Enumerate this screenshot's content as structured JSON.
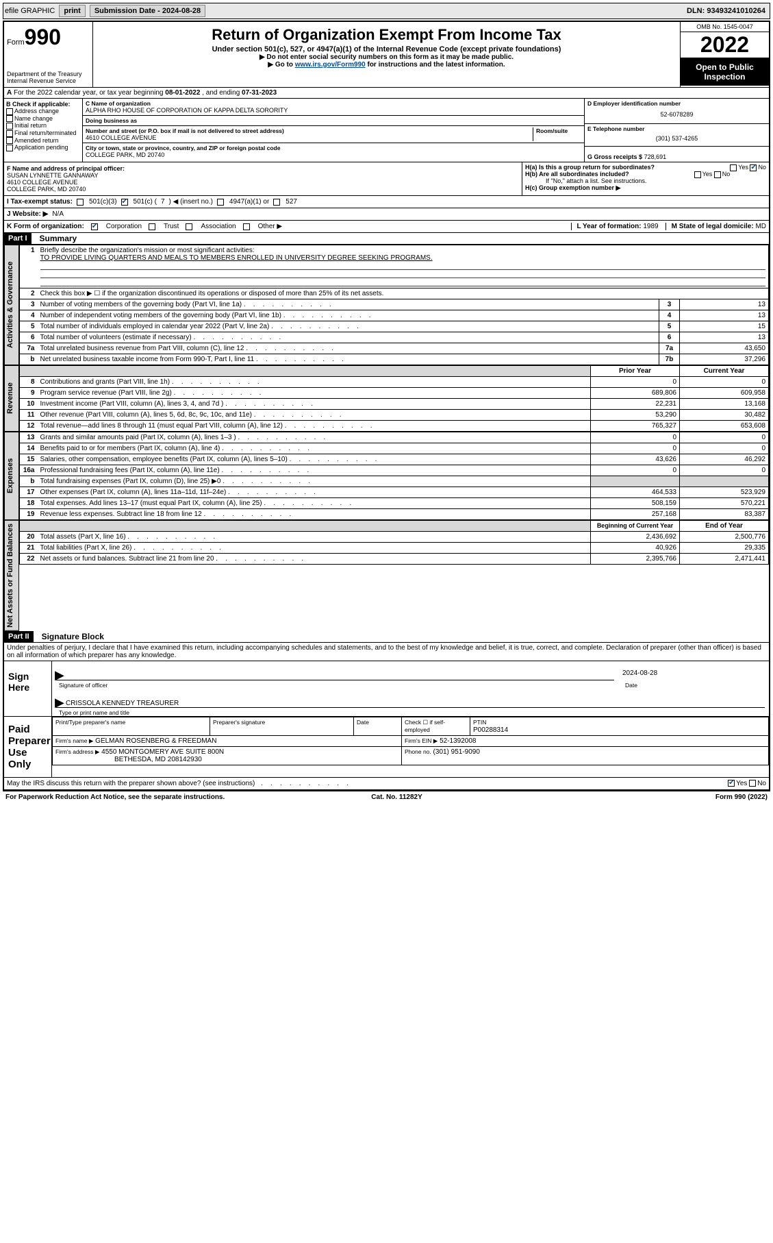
{
  "topbar": {
    "efile": "efile GRAPHIC",
    "print": "print",
    "sub_label": "Submission Date - 2024-08-28",
    "dln": "DLN: 93493241010264"
  },
  "header": {
    "form_word": "Form",
    "form_num": "990",
    "dept": "Department of the Treasury",
    "irs": "Internal Revenue Service",
    "title": "Return of Organization Exempt From Income Tax",
    "sub1": "Under section 501(c), 527, or 4947(a)(1) of the Internal Revenue Code (except private foundations)",
    "sub2": "▶ Do not enter social security numbers on this form as it may be made public.",
    "sub3_pre": "▶ Go to ",
    "sub3_link": "www.irs.gov/Form990",
    "sub3_post": " for instructions and the latest information.",
    "omb": "OMB No. 1545-0047",
    "year": "2022",
    "open": "Open to Public Inspection"
  },
  "row_a": {
    "label": "A",
    "text_pre": "For the 2022 calendar year, or tax year beginning ",
    "begin": "08-01-2022",
    "mid": " , and ending ",
    "end": "07-31-2023"
  },
  "col_b": {
    "label": "B Check if applicable:",
    "items": [
      "Address change",
      "Name change",
      "Initial return",
      "Final return/terminated",
      "Amended return",
      "Application pending"
    ]
  },
  "col_c": {
    "name_lbl": "C Name of organization",
    "name": "ALPHA RHO HOUSE OF CORPORATION OF KAPPA DELTA SORORITY",
    "dba_lbl": "Doing business as",
    "dba": "",
    "addr_lbl": "Number and street (or P.O. box if mail is not delivered to street address)",
    "room_lbl": "Room/suite",
    "addr": "4610 COLLEGE AVENUE",
    "city_lbl": "City or town, state or province, country, and ZIP or foreign postal code",
    "city": "COLLEGE PARK, MD  20740"
  },
  "col_de": {
    "d_lbl": "D Employer identification number",
    "d_val": "52-6078289",
    "e_lbl": "E Telephone number",
    "e_val": "(301) 537-4265",
    "g_lbl": "G Gross receipts $",
    "g_val": "728,691"
  },
  "row_f": {
    "lbl": "F Name and address of principal officer:",
    "name": "SUSAN LYNNETTE GANNAWAY",
    "addr1": "4610 COLLEGE AVENUE",
    "addr2": "COLLEGE PARK, MD  20740"
  },
  "row_h": {
    "ha_lbl": "H(a)  Is this a group return for subordinates?",
    "ha_yes": "Yes",
    "ha_no": "No",
    "hb_lbl": "H(b)  Are all subordinates included?",
    "hb_yes": "Yes",
    "hb_no": "No",
    "hb_note": "If \"No,\" attach a list. See instructions.",
    "hc_lbl": "H(c)  Group exemption number ▶"
  },
  "row_i": {
    "lbl": "I     Tax-exempt status:",
    "c3": "501(c)(3)",
    "c_pre": "501(c) ( ",
    "c_num": "7",
    "c_post": " ) ◀ (insert no.)",
    "a1": "4947(a)(1) or",
    "s527": "527"
  },
  "row_j": {
    "lbl": "J    Website: ▶",
    "val": "N/A"
  },
  "row_k": {
    "lbl": "K Form of organization:",
    "corp": "Corporation",
    "trust": "Trust",
    "assoc": "Association",
    "other": "Other ▶"
  },
  "row_lm": {
    "l_lbl": "L Year of formation:",
    "l_val": "1989",
    "m_lbl": "M State of legal domicile:",
    "m_val": "MD"
  },
  "part1": {
    "hdr": "Part I",
    "title": "Summary"
  },
  "summary": {
    "q1_lbl": "1",
    "q1_text": "Briefly describe the organization's mission or most significant activities:",
    "q1_val": "TO PROVIDE LIVING QUARTERS AND MEALS TO MEMBERS ENROLLED IN UNIVERSITY DEGREE SEEKING PROGRAMS.",
    "q2_lbl": "2",
    "q2_text": "Check this box ▶ ☐  if the organization discontinued its operations or disposed of more than 25% of its net assets.",
    "rows_gov": [
      {
        "n": "3",
        "d": "Number of voting members of the governing body (Part VI, line 1a)",
        "box": "3",
        "v": "13"
      },
      {
        "n": "4",
        "d": "Number of independent voting members of the governing body (Part VI, line 1b)",
        "box": "4",
        "v": "13"
      },
      {
        "n": "5",
        "d": "Total number of individuals employed in calendar year 2022 (Part V, line 2a)",
        "box": "5",
        "v": "15"
      },
      {
        "n": "6",
        "d": "Total number of volunteers (estimate if necessary)",
        "box": "6",
        "v": "13"
      },
      {
        "n": "7a",
        "d": "Total unrelated business revenue from Part VIII, column (C), line 12",
        "box": "7a",
        "v": "43,650"
      },
      {
        "n": " b",
        "d": "Net unrelated business taxable income from Form 990-T, Part I, line 11",
        "box": "7b",
        "v": "37,296"
      }
    ],
    "col_hdr_prior": "Prior Year",
    "col_hdr_curr": "Current Year",
    "rows_rev": [
      {
        "n": "8",
        "d": "Contributions and grants (Part VIII, line 1h)",
        "p": "0",
        "c": "0"
      },
      {
        "n": "9",
        "d": "Program service revenue (Part VIII, line 2g)",
        "p": "689,806",
        "c": "609,958"
      },
      {
        "n": "10",
        "d": "Investment income (Part VIII, column (A), lines 3, 4, and 7d )",
        "p": "22,231",
        "c": "13,168"
      },
      {
        "n": "11",
        "d": "Other revenue (Part VIII, column (A), lines 5, 6d, 8c, 9c, 10c, and 11e)",
        "p": "53,290",
        "c": "30,482"
      },
      {
        "n": "12",
        "d": "Total revenue—add lines 8 through 11 (must equal Part VIII, column (A), line 12)",
        "p": "765,327",
        "c": "653,608"
      }
    ],
    "rows_exp": [
      {
        "n": "13",
        "d": "Grants and similar amounts paid (Part IX, column (A), lines 1–3 )",
        "p": "0",
        "c": "0"
      },
      {
        "n": "14",
        "d": "Benefits paid to or for members (Part IX, column (A), line 4)",
        "p": "0",
        "c": "0"
      },
      {
        "n": "15",
        "d": "Salaries, other compensation, employee benefits (Part IX, column (A), lines 5–10)",
        "p": "43,626",
        "c": "46,292"
      },
      {
        "n": "16a",
        "d": "Professional fundraising fees (Part IX, column (A), line 11e)",
        "p": "0",
        "c": "0"
      },
      {
        "n": " b",
        "d": "Total fundraising expenses (Part IX, column (D), line 25) ▶0",
        "p": "",
        "c": ""
      },
      {
        "n": "17",
        "d": "Other expenses (Part IX, column (A), lines 11a–11d, 11f–24e)",
        "p": "464,533",
        "c": "523,929"
      },
      {
        "n": "18",
        "d": "Total expenses. Add lines 13–17 (must equal Part IX, column (A), line 25)",
        "p": "508,159",
        "c": "570,221"
      },
      {
        "n": "19",
        "d": "Revenue less expenses. Subtract line 18 from line 12",
        "p": "257,168",
        "c": "83,387"
      }
    ],
    "col_hdr_beg": "Beginning of Current Year",
    "col_hdr_end": "End of Year",
    "rows_net": [
      {
        "n": "20",
        "d": "Total assets (Part X, line 16)",
        "p": "2,436,692",
        "c": "2,500,776"
      },
      {
        "n": "21",
        "d": "Total liabilities (Part X, line 26)",
        "p": "40,926",
        "c": "29,335"
      },
      {
        "n": "22",
        "d": "Net assets or fund balances. Subtract line 21 from line 20",
        "p": "2,395,766",
        "c": "2,471,441"
      }
    ],
    "side_gov": "Activities & Governance",
    "side_rev": "Revenue",
    "side_exp": "Expenses",
    "side_net": "Net Assets or Fund Balances"
  },
  "part2": {
    "hdr": "Part II",
    "title": "Signature Block"
  },
  "sig": {
    "penalties": "Under penalties of perjury, I declare that I have examined this return, including accompanying schedules and statements, and to the best of my knowledge and belief, it is true, correct, and complete. Declaration of preparer (other than officer) is based on all information of which preparer has any knowledge.",
    "sign_here": "Sign Here",
    "officer_sig_lbl": "Signature of officer",
    "date_lbl": "Date",
    "date_val": "2024-08-28",
    "officer_name": "CRISSOLA KENNEDY TREASURER",
    "officer_name_lbl": "Type or print name and title"
  },
  "prep": {
    "title": "Paid Preparer Use Only",
    "name_lbl": "Print/Type preparer's name",
    "sig_lbl": "Preparer's signature",
    "date_lbl": "Date",
    "self_lbl": "Check ☐ if self-employed",
    "ptin_lbl": "PTIN",
    "ptin_val": "P00288314",
    "firm_name_lbl": "Firm's name    ▶",
    "firm_name": "GELMAN ROSENBERG & FREEDMAN",
    "firm_ein_lbl": "Firm's EIN ▶",
    "firm_ein": "52-1392008",
    "firm_addr_lbl": "Firm's address ▶",
    "firm_addr1": "4550 MONTGOMERY AVE SUITE 800N",
    "firm_addr2": "BETHESDA, MD  208142930",
    "phone_lbl": "Phone no.",
    "phone_val": "(301) 951-9090"
  },
  "discuss": {
    "q": "May the IRS discuss this return with the preparer shown above? (see instructions)",
    "yes": "Yes",
    "no": "No"
  },
  "footer": {
    "pra": "For Paperwork Reduction Act Notice, see the separate instructions.",
    "cat": "Cat. No. 11282Y",
    "form": "Form 990 (2022)"
  }
}
